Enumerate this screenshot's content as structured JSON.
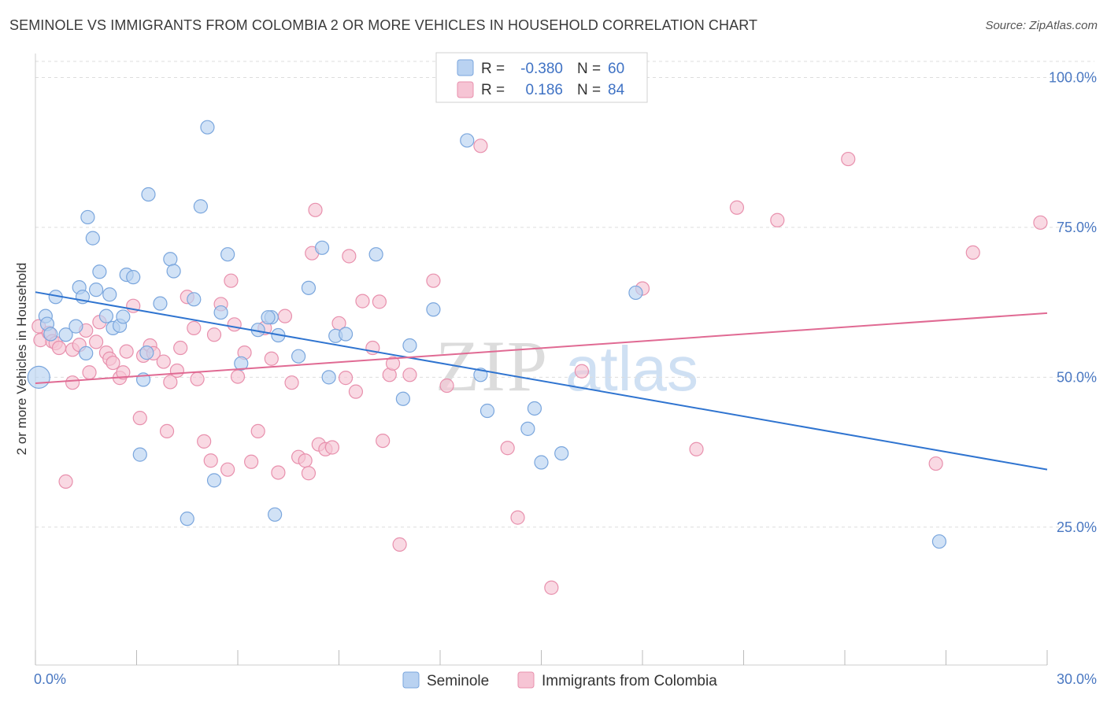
{
  "header": {
    "title": "SEMINOLE VS IMMIGRANTS FROM COLOMBIA 2 OR MORE VEHICLES IN HOUSEHOLD CORRELATION CHART",
    "source": "Source: ZipAtlas.com"
  },
  "watermark": {
    "part1": "ZIP",
    "part2": "atlas"
  },
  "legend": {
    "rows": [
      {
        "r_label": "R =",
        "r_value": "-0.380",
        "n_label": "N =",
        "n_value": "60"
      },
      {
        "r_label": "R =",
        "r_value": "0.186",
        "n_label": "N =",
        "n_value": "84"
      }
    ]
  },
  "bottom_legend": [
    "Seminole",
    "Immigrants from Colombia"
  ],
  "colors": {
    "seminole_fill": "#b9d2f1",
    "seminole_stroke": "#7aa6dd",
    "seminole_line": "#2f74d0",
    "colombia_fill": "#f6c4d4",
    "colombia_stroke": "#e890ad",
    "colombia_line": "#e06a93",
    "tick_text": "#4a78c2",
    "grid": "#dddddd"
  },
  "chart_data": {
    "type": "scatter",
    "title": "SEMINOLE VS IMMIGRANTS FROM COLOMBIA 2 OR MORE VEHICLES IN HOUSEHOLD CORRELATION CHART",
    "xlabel": "",
    "ylabel": "2 or more Vehicles in Household",
    "xlim": [
      0,
      30
    ],
    "ylim": [
      2,
      104
    ],
    "x_ticks": [
      0,
      3,
      6,
      9,
      12,
      15,
      18,
      21,
      24,
      27,
      30
    ],
    "x_tick_labels": [
      {
        "value": 0,
        "label": "0.0%"
      },
      {
        "value": 30,
        "label": "30.0%"
      }
    ],
    "y_ticks": [
      {
        "value": 25,
        "label": "25.0%"
      },
      {
        "value": 50,
        "label": "50.0%"
      },
      {
        "value": 75,
        "label": "75.0%"
      },
      {
        "value": 100,
        "label": "100.0%"
      }
    ],
    "grid": "horizontal dashed",
    "legend_position": "top-center",
    "series": [
      {
        "name": "Seminole",
        "R": -0.38,
        "N": 60,
        "trend": {
          "x": [
            0,
            30
          ],
          "y": [
            64.2,
            34.6
          ]
        },
        "points": [
          [
            0.1,
            50.0
          ],
          [
            0.3,
            60.2
          ],
          [
            0.35,
            58.9
          ],
          [
            0.45,
            57.2
          ],
          [
            0.6,
            63.4
          ],
          [
            0.9,
            57.1
          ],
          [
            1.2,
            58.5
          ],
          [
            1.3,
            65.0
          ],
          [
            1.4,
            63.4
          ],
          [
            1.5,
            54.0
          ],
          [
            1.55,
            76.7
          ],
          [
            1.7,
            73.2
          ],
          [
            1.8,
            64.6
          ],
          [
            1.9,
            67.6
          ],
          [
            2.1,
            60.2
          ],
          [
            2.2,
            63.8
          ],
          [
            2.3,
            58.2
          ],
          [
            2.5,
            58.6
          ],
          [
            2.6,
            60.1
          ],
          [
            2.7,
            67.1
          ],
          [
            2.9,
            66.7
          ],
          [
            3.1,
            37.1
          ],
          [
            3.2,
            49.6
          ],
          [
            3.3,
            54.1
          ],
          [
            3.35,
            80.5
          ],
          [
            3.7,
            62.3
          ],
          [
            4.0,
            69.7
          ],
          [
            4.1,
            67.7
          ],
          [
            4.5,
            26.4
          ],
          [
            4.7,
            63.0
          ],
          [
            4.9,
            78.5
          ],
          [
            5.1,
            91.7
          ],
          [
            5.3,
            32.8
          ],
          [
            5.5,
            60.8
          ],
          [
            5.7,
            70.5
          ],
          [
            6.1,
            52.3
          ],
          [
            6.6,
            57.9
          ],
          [
            7.0,
            60.0
          ],
          [
            7.1,
            27.1
          ],
          [
            7.2,
            57.0
          ],
          [
            7.8,
            53.5
          ],
          [
            8.1,
            64.9
          ],
          [
            8.5,
            71.6
          ],
          [
            8.9,
            56.9
          ],
          [
            9.2,
            57.2
          ],
          [
            10.1,
            70.5
          ],
          [
            10.9,
            46.4
          ],
          [
            11.1,
            55.3
          ],
          [
            11.8,
            61.3
          ],
          [
            12.8,
            89.5
          ],
          [
            13.2,
            50.4
          ],
          [
            13.4,
            44.4
          ],
          [
            14.6,
            41.4
          ],
          [
            14.8,
            44.8
          ],
          [
            15.0,
            35.8
          ],
          [
            15.6,
            37.3
          ],
          [
            17.8,
            64.1
          ],
          [
            26.8,
            22.6
          ],
          [
            8.7,
            50.0
          ],
          [
            6.9,
            60.0
          ]
        ]
      },
      {
        "name": "Immigrants from Colombia",
        "R": 0.186,
        "N": 84,
        "trend": {
          "x": [
            0,
            30
          ],
          "y": [
            49.0,
            60.7
          ]
        },
        "points": [
          [
            0.1,
            58.5
          ],
          [
            0.15,
            56.2
          ],
          [
            0.4,
            57.4
          ],
          [
            0.5,
            56.0
          ],
          [
            0.6,
            55.7
          ],
          [
            0.7,
            54.9
          ],
          [
            0.9,
            32.6
          ],
          [
            1.1,
            54.6
          ],
          [
            1.1,
            49.1
          ],
          [
            1.3,
            55.4
          ],
          [
            1.5,
            57.8
          ],
          [
            1.6,
            50.8
          ],
          [
            1.8,
            55.9
          ],
          [
            1.9,
            59.2
          ],
          [
            2.1,
            54.1
          ],
          [
            2.2,
            53.1
          ],
          [
            2.3,
            52.4
          ],
          [
            2.5,
            49.9
          ],
          [
            2.6,
            50.8
          ],
          [
            2.7,
            54.3
          ],
          [
            2.9,
            61.9
          ],
          [
            3.1,
            43.2
          ],
          [
            3.2,
            53.6
          ],
          [
            3.4,
            55.3
          ],
          [
            3.5,
            54.0
          ],
          [
            3.8,
            52.6
          ],
          [
            3.9,
            41.0
          ],
          [
            4.0,
            49.2
          ],
          [
            4.2,
            51.1
          ],
          [
            4.3,
            54.9
          ],
          [
            4.5,
            63.4
          ],
          [
            4.7,
            58.2
          ],
          [
            4.8,
            49.7
          ],
          [
            5.0,
            39.3
          ],
          [
            5.2,
            36.1
          ],
          [
            5.3,
            57.1
          ],
          [
            5.5,
            62.2
          ],
          [
            5.7,
            34.6
          ],
          [
            5.8,
            66.1
          ],
          [
            5.9,
            58.8
          ],
          [
            6.0,
            50.1
          ],
          [
            6.2,
            54.1
          ],
          [
            6.4,
            35.9
          ],
          [
            6.6,
            41.0
          ],
          [
            6.8,
            58.2
          ],
          [
            7.0,
            53.1
          ],
          [
            7.2,
            34.1
          ],
          [
            7.4,
            60.2
          ],
          [
            7.6,
            49.1
          ],
          [
            7.8,
            36.7
          ],
          [
            8.0,
            36.1
          ],
          [
            8.1,
            34.0
          ],
          [
            8.2,
            70.7
          ],
          [
            8.3,
            77.9
          ],
          [
            8.4,
            38.8
          ],
          [
            8.6,
            38.0
          ],
          [
            8.8,
            38.3
          ],
          [
            9.0,
            59.0
          ],
          [
            9.2,
            49.9
          ],
          [
            9.3,
            70.2
          ],
          [
            9.5,
            47.6
          ],
          [
            9.7,
            62.7
          ],
          [
            10.0,
            54.9
          ],
          [
            10.2,
            62.6
          ],
          [
            10.3,
            39.4
          ],
          [
            10.5,
            50.4
          ],
          [
            10.6,
            52.3
          ],
          [
            10.8,
            22.1
          ],
          [
            11.1,
            50.4
          ],
          [
            11.8,
            66.1
          ],
          [
            12.2,
            48.6
          ],
          [
            13.2,
            88.6
          ],
          [
            14.0,
            38.2
          ],
          [
            14.3,
            26.6
          ],
          [
            15.3,
            14.9
          ],
          [
            16.2,
            51.0
          ],
          [
            18.0,
            64.8
          ],
          [
            19.6,
            38.0
          ],
          [
            20.8,
            78.3
          ],
          [
            22.0,
            76.2
          ],
          [
            24.1,
            86.4
          ],
          [
            26.7,
            35.6
          ],
          [
            27.8,
            70.8
          ],
          [
            29.8,
            75.8
          ]
        ]
      }
    ]
  }
}
